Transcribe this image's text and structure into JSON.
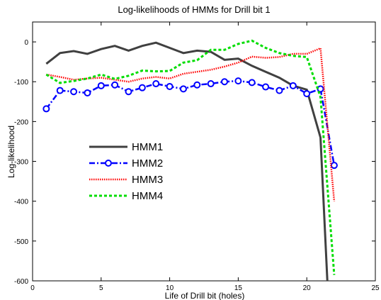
{
  "chart_data": {
    "type": "line",
    "title": "Log-likelihoods of HMMs for Drill bit 1",
    "xlabel": "Life of Drill bit (holes)",
    "ylabel": "Log-likelihood",
    "xlim": [
      0,
      25
    ],
    "ylim": [
      -600,
      50
    ],
    "xticks": [
      0,
      5,
      10,
      15,
      20,
      25
    ],
    "yticks": [
      -600,
      -500,
      -400,
      -300,
      -200,
      -100,
      0
    ],
    "grid": false,
    "legend_position": "lower-left",
    "series": [
      {
        "name": "HMM1",
        "color": "#404040",
        "style": "solid",
        "marker": "none",
        "x": [
          1,
          2,
          3,
          4,
          5,
          6,
          7,
          8,
          9,
          10,
          11,
          12,
          13,
          14,
          15,
          16,
          17,
          18,
          19,
          20,
          21,
          21.5
        ],
        "y": [
          -55,
          -28,
          -23,
          -30,
          -18,
          -10,
          -22,
          -10,
          -2,
          -15,
          -28,
          -22,
          -25,
          -45,
          -42,
          -60,
          -75,
          -90,
          -110,
          -120,
          -240,
          -600
        ]
      },
      {
        "name": "HMM2",
        "color": "#0000ff",
        "style": "dashdot",
        "marker": "circle",
        "x": [
          1,
          2,
          3,
          4,
          5,
          6,
          7,
          8,
          9,
          10,
          11,
          12,
          13,
          14,
          15,
          16,
          17,
          18,
          19,
          20,
          21,
          22
        ],
        "y": [
          -168,
          -122,
          -125,
          -128,
          -110,
          -108,
          -125,
          -115,
          -105,
          -112,
          -118,
          -108,
          -105,
          -100,
          -98,
          -102,
          -113,
          -122,
          -110,
          -130,
          -118,
          -310
        ]
      },
      {
        "name": "HMM3",
        "color": "#ff0000",
        "style": "dotted",
        "marker": "none",
        "x": [
          1,
          2,
          3,
          4,
          5,
          6,
          7,
          8,
          9,
          10,
          11,
          12,
          13,
          14,
          15,
          16,
          17,
          18,
          19,
          20,
          21,
          22
        ],
        "y": [
          -82,
          -88,
          -95,
          -92,
          -90,
          -95,
          -100,
          -92,
          -88,
          -92,
          -80,
          -75,
          -70,
          -62,
          -52,
          -37,
          -40,
          -38,
          -30,
          -30,
          -16,
          -400
        ]
      },
      {
        "name": "HMM4",
        "color": "#00dd00",
        "style": "dashed",
        "marker": "none",
        "x": [
          1,
          2,
          3,
          4,
          5,
          6,
          7,
          8,
          9,
          10,
          11,
          12,
          13,
          14,
          15,
          16,
          17,
          18,
          19,
          20,
          21,
          22
        ],
        "y": [
          -82,
          -103,
          -98,
          -92,
          -82,
          -93,
          -85,
          -72,
          -74,
          -73,
          -52,
          -46,
          -20,
          -20,
          -5,
          3,
          -15,
          -28,
          -35,
          -38,
          -138,
          -585
        ]
      }
    ]
  }
}
